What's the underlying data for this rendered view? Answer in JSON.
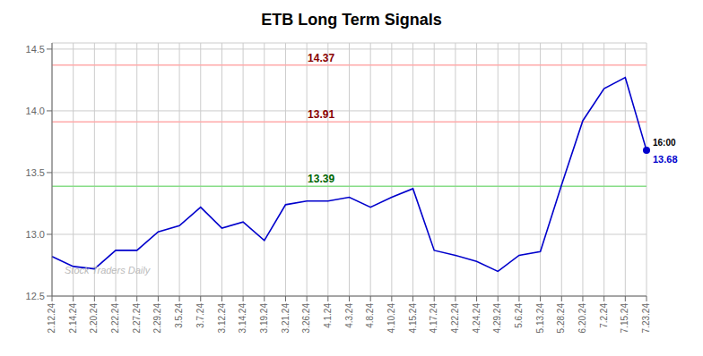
{
  "chart_data": {
    "type": "line",
    "title": "ETB Long Term Signals",
    "categories": [
      "2.12.24",
      "2.14.24",
      "2.20.24",
      "2.22.24",
      "2.27.24",
      "2.29.24",
      "3.5.24",
      "3.7.24",
      "3.12.24",
      "3.14.24",
      "3.19.24",
      "3.21.24",
      "3.26.24",
      "4.1.24",
      "4.3.24",
      "4.8.24",
      "4.10.24",
      "4.15.24",
      "4.17.24",
      "4.22.24",
      "4.24.24",
      "4.29.24",
      "5.6.24",
      "5.13.24",
      "5.28.24",
      "6.20.24",
      "7.2.24",
      "7.15.24",
      "7.23.24"
    ],
    "values": [
      12.82,
      12.74,
      12.72,
      12.87,
      12.87,
      13.02,
      13.07,
      13.22,
      13.05,
      13.1,
      12.95,
      13.24,
      13.27,
      13.27,
      13.3,
      13.22,
      13.3,
      13.37,
      12.87,
      12.83,
      12.78,
      12.7,
      12.83,
      12.86,
      13.4,
      13.92,
      14.18,
      14.27,
      13.68
    ],
    "color": "#0000cc",
    "ylim": [
      12.5,
      14.55
    ],
    "yticks": [
      12.5,
      {
        "value": 13,
        "label": "13.0"
      },
      13.5,
      {
        "value": 14,
        "label": "14.0"
      },
      14.5
    ],
    "grid": true,
    "reference_lines": [
      {
        "value": 14.37,
        "label": "14.37",
        "color": "#ffaaaa",
        "label_color": "#880000"
      },
      {
        "value": 13.91,
        "label": "13.91",
        "color": "#ffaaaa",
        "label_color": "#880000"
      },
      {
        "value": 13.39,
        "label": "13.39",
        "color": "#88dd88",
        "label_color": "#006600"
      }
    ],
    "last_point": {
      "time_label": "16:00",
      "value_label": "13.68"
    },
    "watermark": {
      "text": "Stock Traders Daily",
      "color": "#bbbbbb"
    }
  }
}
